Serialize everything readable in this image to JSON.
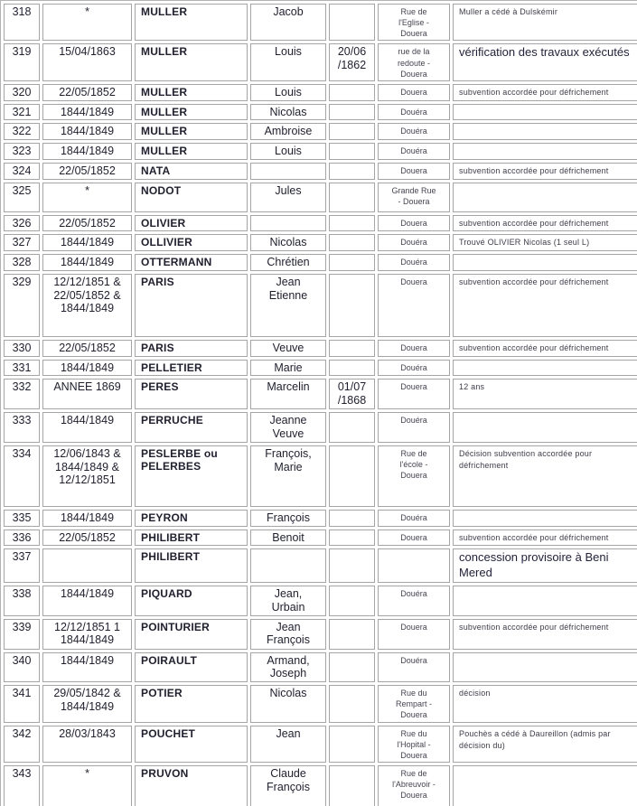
{
  "colors": {
    "page_background": "#f1eee2",
    "table_background": "#ffffff",
    "cell_border": "#a5a5a5",
    "main_text": "#1f1f2e",
    "small_text": "#3d3d4a"
  },
  "table": {
    "columns": [
      "number",
      "date",
      "surname",
      "firstname",
      "second_date",
      "location",
      "note"
    ],
    "rows": [
      {
        "num": "318",
        "date": "*",
        "surname": "MULLER",
        "firstname": "Jacob",
        "date2": "",
        "location": "Rue de\nl'Eglise -\nDouera",
        "note": "Muller a cédé à Dulskémir",
        "note_size": "small"
      },
      {
        "num": "319",
        "date": "15/04/1863",
        "surname": "MULLER",
        "firstname": "Louis",
        "date2": "20/06\n/1862",
        "location": "rue de la\nredoute -\nDouera",
        "note": "vérification des travaux exécutés",
        "note_size": "large"
      },
      {
        "num": "320",
        "date": "22/05/1852",
        "surname": "MULLER",
        "firstname": "Louis",
        "date2": "",
        "location": "Douera",
        "note": "subvention accordée pour défrichement",
        "note_size": "small"
      },
      {
        "num": "321",
        "date": "1844/1849",
        "surname": "MULLER",
        "firstname": "Nicolas",
        "date2": "",
        "location": "Douéra",
        "note": "",
        "note_size": "small"
      },
      {
        "num": "322",
        "date": "1844/1849",
        "surname": "MULLER",
        "firstname": "Ambroise",
        "date2": "",
        "location": "Douéra",
        "note": "",
        "note_size": "small"
      },
      {
        "num": "323",
        "date": "1844/1849",
        "surname": "MULLER",
        "firstname": "Louis",
        "date2": "",
        "location": "Douéra",
        "note": "",
        "note_size": "small"
      },
      {
        "num": "324",
        "date": "22/05/1852",
        "surname": "NATA",
        "firstname": "",
        "date2": "",
        "location": "Douera",
        "note": "subvention accordée pour défrichement",
        "note_size": "small"
      },
      {
        "num": "325",
        "date": "*",
        "surname": "NODOT",
        "firstname": "Jules",
        "date2": "",
        "location": "Grande Rue\n- Douera",
        "note": "",
        "note_size": "small"
      },
      {
        "num": "326",
        "date": "22/05/1852",
        "surname": "OLIVIER",
        "firstname": "",
        "date2": "",
        "location": "Douera",
        "note": "subvention accordée pour défrichement",
        "note_size": "small"
      },
      {
        "num": "327",
        "date": "1844/1849",
        "surname": "OLLIVIER",
        "firstname": "Nicolas",
        "date2": "",
        "location": "Douéra",
        "note": "Trouvé OLIVIER Nicolas (1 seul L)",
        "note_size": "small"
      },
      {
        "num": "328",
        "date": "1844/1849",
        "surname": "OTTERMANN",
        "firstname": "Chrétien",
        "date2": "",
        "location": "Douéra",
        "note": "",
        "note_size": "small"
      },
      {
        "num": "329",
        "date": "12/12/1851 &\n22/05/1852 &\n1844/1849",
        "surname": "PARIS",
        "firstname": "Jean\nEtienne",
        "date2": "",
        "location": "Douera",
        "note": "subvention accordée pour défrichement",
        "note_size": "small"
      },
      {
        "num": "330",
        "date": "22/05/1852",
        "surname": "PARIS",
        "firstname": "Veuve",
        "date2": "",
        "location": "Douera",
        "note": "subvention accordée pour défrichement",
        "note_size": "small"
      },
      {
        "num": "331",
        "date": "1844/1849",
        "surname": "PELLETIER",
        "firstname": "Marie",
        "date2": "",
        "location": "Douéra",
        "note": "",
        "note_size": "small"
      },
      {
        "num": "332",
        "date": "ANNEE 1869",
        "surname": "PERES",
        "firstname": "Marcelin",
        "date2": "01/07\n/1868",
        "location": "Douera",
        "note": "12 ans",
        "note_size": "small"
      },
      {
        "num": "333",
        "date": "1844/1849",
        "surname": "PERRUCHE",
        "firstname": "Jeanne\nVeuve",
        "date2": "",
        "location": "Douéra",
        "note": "",
        "note_size": "small"
      },
      {
        "num": "334",
        "date": "12/06/1843 &\n1844/1849 &\n12/12/1851",
        "surname": "PESLERBE ou\nPELERBES",
        "firstname": "François,\nMarie",
        "date2": "",
        "location": "Rue de\nl'école -\nDouera",
        "note": "Décision subvention accordée pour défrichement",
        "note_size": "small"
      },
      {
        "num": "335",
        "date": "1844/1849",
        "surname": "PEYRON",
        "firstname": "François",
        "date2": "",
        "location": "Douéra",
        "note": "",
        "note_size": "small"
      },
      {
        "num": "336",
        "date": "22/05/1852",
        "surname": "PHILIBERT",
        "firstname": "Benoit",
        "date2": "",
        "location": "Douera",
        "note": "subvention accordée pour défrichement",
        "note_size": "small"
      },
      {
        "num": "337",
        "date": "",
        "surname": "PHILIBERT",
        "firstname": "",
        "date2": "",
        "location": "",
        "note": "concession provisoire à Beni Mered",
        "note_size": "large"
      },
      {
        "num": "338",
        "date": "1844/1849",
        "surname": "PIQUARD",
        "firstname": "Jean,\nUrbain",
        "date2": "",
        "location": "Douéra",
        "note": "",
        "note_size": "small"
      },
      {
        "num": "339",
        "date": "12/12/1851 1\n1844/1849",
        "surname": "POINTURIER",
        "firstname": "Jean\nFrançois",
        "date2": "",
        "location": "Douera",
        "note": "subvention accordée pour défrichement",
        "note_size": "small"
      },
      {
        "num": "340",
        "date": "1844/1849",
        "surname": "POIRAULT",
        "firstname": "Armand,\nJoseph",
        "date2": "",
        "location": "Douéra",
        "note": "",
        "note_size": "small"
      },
      {
        "num": "341",
        "date": "29/05/1842 &\n1844/1849",
        "surname": "POTIER",
        "firstname": "Nicolas",
        "date2": "",
        "location": "Rue du\nRempart -\nDouera",
        "note": "décision",
        "note_size": "small"
      },
      {
        "num": "342",
        "date": "28/03/1843",
        "surname": "POUCHET",
        "firstname": "Jean",
        "date2": "",
        "location": "Rue du\nl'Hopital -\nDouera",
        "note": "Pouchès a cédé à Daureillon (admis par décision du)",
        "note_size": "small"
      },
      {
        "num": "343",
        "date": "*",
        "surname": "PRUVON",
        "firstname": "Claude\nFrançois",
        "date2": "",
        "location": "Rue de\nl'Abreuvoir -\nDouera",
        "note": "",
        "note_size": "small"
      }
    ]
  }
}
